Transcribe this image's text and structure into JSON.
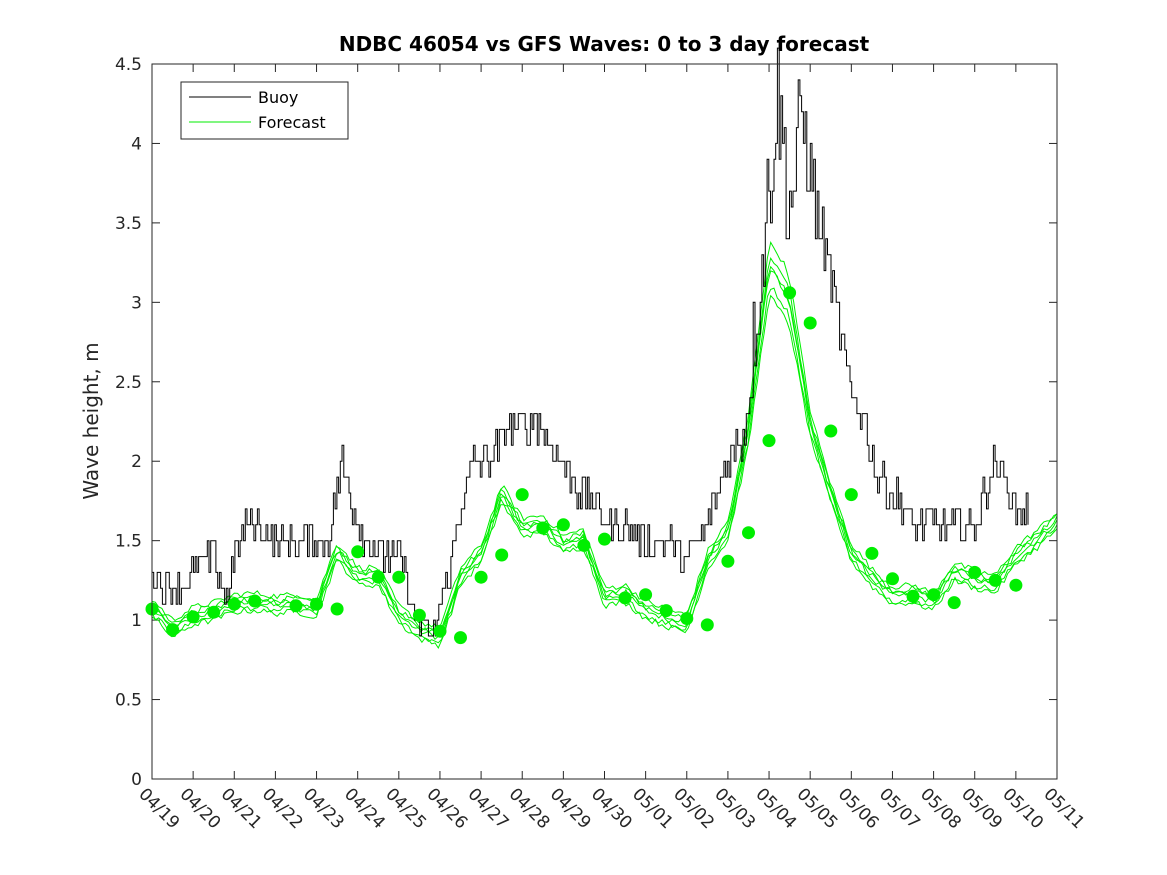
{
  "chart_data": {
    "type": "line",
    "title": "NDBC 46054 vs GFS Waves: 0 to 3 day forecast",
    "xlabel": "",
    "ylabel": "Wave height, m",
    "xlim": [
      "04/19",
      "05/11"
    ],
    "ylim": [
      0,
      4.5
    ],
    "y_ticks": [
      "0",
      "0.5",
      "1",
      "1.5",
      "2",
      "2.5",
      "3",
      "3.5",
      "4",
      "4.5"
    ],
    "x_ticks": [
      "04/19",
      "04/20",
      "04/21",
      "04/22",
      "04/23",
      "04/24",
      "04/25",
      "04/26",
      "04/27",
      "04/28",
      "04/29",
      "04/30",
      "05/01",
      "05/02",
      "05/03",
      "05/04",
      "05/05",
      "05/06",
      "05/07",
      "05/08",
      "05/09",
      "05/10",
      "05/11"
    ],
    "grid": false,
    "legend": {
      "placement": "top-left",
      "entries": [
        "Buoy",
        "Forecast"
      ]
    },
    "colors": {
      "buoy": "#000000",
      "forecast": "#00ee00"
    },
    "series": [
      {
        "name": "Buoy",
        "x_days": [
          0,
          0.3,
          0.6,
          1.0,
          1.5,
          1.8,
          2.0,
          2.3,
          2.7,
          3.0,
          3.5,
          4.0,
          4.3,
          4.6,
          4.9,
          5.2,
          5.6,
          6.0,
          6.4,
          6.8,
          7.2,
          7.5,
          7.8,
          8.2,
          8.6,
          9.0,
          9.3,
          9.6,
          10.0,
          10.4,
          10.8,
          11.2,
          11.6,
          12.0,
          12.5,
          13.0,
          13.5,
          14.0,
          14.4,
          14.8,
          15.2,
          15.5,
          15.8,
          16.2,
          16.6,
          17.0,
          17.3,
          17.6,
          18.0,
          18.5,
          19.0,
          19.5,
          20.0,
          20.5,
          21.0,
          21.3
        ],
        "y": [
          1.3,
          1.2,
          1.2,
          1.3,
          1.4,
          1.1,
          1.4,
          1.6,
          1.6,
          1.5,
          1.5,
          1.5,
          1.5,
          2.0,
          1.7,
          1.5,
          1.4,
          1.4,
          1.0,
          0.9,
          1.3,
          1.7,
          2.0,
          2.0,
          2.2,
          2.2,
          2.3,
          2.1,
          2.0,
          1.8,
          1.7,
          1.6,
          1.6,
          1.5,
          1.5,
          1.4,
          1.6,
          2.0,
          2.2,
          3.2,
          4.3,
          3.6,
          4.2,
          3.5,
          3.0,
          2.4,
          2.3,
          1.9,
          1.8,
          1.6,
          1.6,
          1.6,
          1.6,
          2.0,
          1.7,
          1.7
        ]
      },
      {
        "name": "Forecast",
        "x_days": [
          0,
          0.5,
          1.0,
          1.5,
          2.0,
          2.5,
          3.0,
          3.5,
          4.0,
          4.5,
          5.0,
          5.5,
          6.0,
          6.5,
          7.0,
          7.5,
          8.0,
          8.5,
          9.0,
          9.5,
          10.0,
          10.5,
          11.0,
          11.5,
          12.0,
          12.5,
          13.0,
          13.5,
          14.0,
          14.5,
          15.0,
          15.5,
          16.0,
          16.5,
          17.0,
          17.5,
          18.0,
          18.5,
          19.0,
          19.5,
          20.0,
          20.5,
          21.0,
          21.5,
          22.0
        ],
        "y": [
          1.07,
          0.94,
          1.02,
          1.05,
          1.1,
          1.11,
          1.09,
          1.1,
          1.07,
          1.43,
          1.27,
          1.27,
          1.03,
          0.93,
          0.89,
          1.27,
          1.41,
          1.79,
          1.58,
          1.6,
          1.47,
          1.51,
          1.14,
          1.16,
          1.06,
          1.01,
          0.97,
          1.37,
          1.55,
          2.13,
          3.06,
          2.87,
          2.19,
          1.79,
          1.42,
          1.26,
          1.15,
          1.16,
          1.11,
          1.3,
          1.25,
          1.22,
          1.4,
          1.5,
          1.62
        ]
      }
    ],
    "markers": {
      "series": "Forecast",
      "x_days": [
        0,
        0.5,
        1.0,
        1.5,
        2.0,
        2.5,
        3.5,
        4.0,
        4.5,
        5.0,
        5.5,
        6.0,
        6.5,
        7.0,
        7.5,
        8.0,
        8.5,
        9.0,
        9.5,
        10.0,
        10.5,
        11.0,
        11.5,
        12.0,
        12.5,
        13.0,
        13.5,
        14.0,
        14.5,
        15.0,
        15.5,
        16.0,
        16.5,
        17.0,
        17.5,
        18.0,
        18.5,
        19.0,
        19.5,
        20.0,
        20.5,
        21.0
      ],
      "y": [
        1.07,
        0.94,
        1.02,
        1.05,
        1.1,
        1.12,
        1.09,
        1.1,
        1.07,
        1.43,
        1.27,
        1.27,
        1.03,
        0.93,
        0.89,
        1.27,
        1.41,
        1.79,
        1.58,
        1.6,
        1.47,
        1.51,
        1.14,
        1.16,
        1.06,
        1.01,
        0.97,
        1.37,
        1.55,
        2.13,
        3.06,
        2.87,
        2.19,
        1.79,
        1.42,
        1.26,
        1.15,
        1.16,
        1.11,
        1.3,
        1.25,
        1.22
      ]
    }
  }
}
